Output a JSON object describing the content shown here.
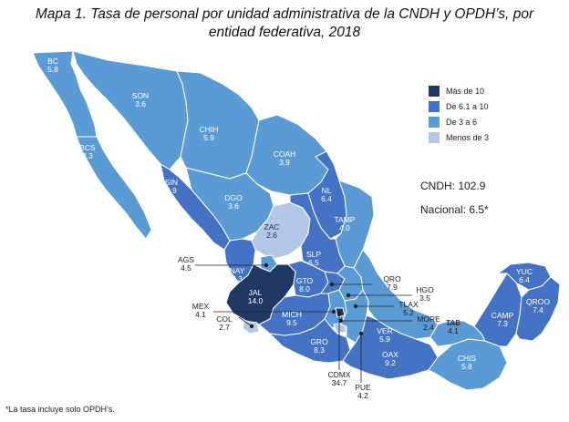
{
  "title": {
    "line1": "Mapa 1. Tasa de personal por unidad administrativa de la CNDH y OPDH’s, por",
    "line2": "entidad federativa, 2018"
  },
  "colors": {
    "mas_de_10": "#1f3864",
    "de_6_1_a_10": "#4472c4",
    "de_3_a_6": "#5b9bd5",
    "menos_de_3": "#b4c7e7"
  },
  "legend": [
    {
      "label": "Más de 10",
      "color": "#1f3864"
    },
    {
      "label": "De 6.1 a 10",
      "color": "#4472c4"
    },
    {
      "label": "De 3 a 6",
      "color": "#5b9bd5"
    },
    {
      "label": "Menos de 3",
      "color": "#b4c7e7"
    }
  ],
  "totals": {
    "cndh": "CNDH: 102.9",
    "nacional": "Nacional: 6.5*"
  },
  "states": {
    "bc": {
      "abbr": "BC",
      "value": "5.8"
    },
    "bcs": {
      "abbr": "BCS",
      "value": "3.3"
    },
    "son": {
      "abbr": "SON",
      "value": "3.6"
    },
    "chih": {
      "abbr": "CHIH",
      "value": "5.9"
    },
    "coah": {
      "abbr": "COAH",
      "value": "3.9"
    },
    "sin": {
      "abbr": "SIN",
      "value": "9.9"
    },
    "dgo": {
      "abbr": "DGO",
      "value": "3.6"
    },
    "nl": {
      "abbr": "NL",
      "value": "6.4"
    },
    "tamp": {
      "abbr": "TAMP",
      "value": "4.0"
    },
    "zac": {
      "abbr": "ZAC",
      "value": "2.6"
    },
    "slp": {
      "abbr": "SLP",
      "value": "6.5"
    },
    "ags": {
      "abbr": "AGS",
      "value": "4.5"
    },
    "nay": {
      "abbr": "NAY",
      "value": "5.3"
    },
    "gto": {
      "abbr": "GTO",
      "value": "8.0"
    },
    "qro": {
      "abbr": "QRO",
      "value": "7.9"
    },
    "hgo": {
      "abbr": "HGO",
      "value": "3.5"
    },
    "jal": {
      "abbr": "JAL",
      "value": "14.0"
    },
    "mex": {
      "abbr": "MEX",
      "value": "4.1"
    },
    "tlax": {
      "abbr": "TLAX",
      "value": "5.2"
    },
    "col": {
      "abbr": "COL",
      "value": "2.7"
    },
    "mich": {
      "abbr": "MICH",
      "value": "9.5"
    },
    "more": {
      "abbr": "MORE",
      "value": "2.4"
    },
    "tab": {
      "abbr": "TAB",
      "value": "4.1"
    },
    "ver": {
      "abbr": "VER",
      "value": "5.9"
    },
    "gro": {
      "abbr": "GRO",
      "value": "8.3"
    },
    "oax": {
      "abbr": "OAX",
      "value": "9.2"
    },
    "chis": {
      "abbr": "CHIS",
      "value": "5.8"
    },
    "cdmx": {
      "abbr": "CDMX",
      "value": "34.7"
    },
    "pue": {
      "abbr": "PUE",
      "value": "4.2"
    },
    "camp": {
      "abbr": "CAMP",
      "value": "7.3"
    },
    "yuc": {
      "abbr": "YUC",
      "value": "6.4"
    },
    "qroo": {
      "abbr": "QROO",
      "value": "7.4"
    }
  },
  "footnote": "*La tasa incluye solo OPDH’s."
}
